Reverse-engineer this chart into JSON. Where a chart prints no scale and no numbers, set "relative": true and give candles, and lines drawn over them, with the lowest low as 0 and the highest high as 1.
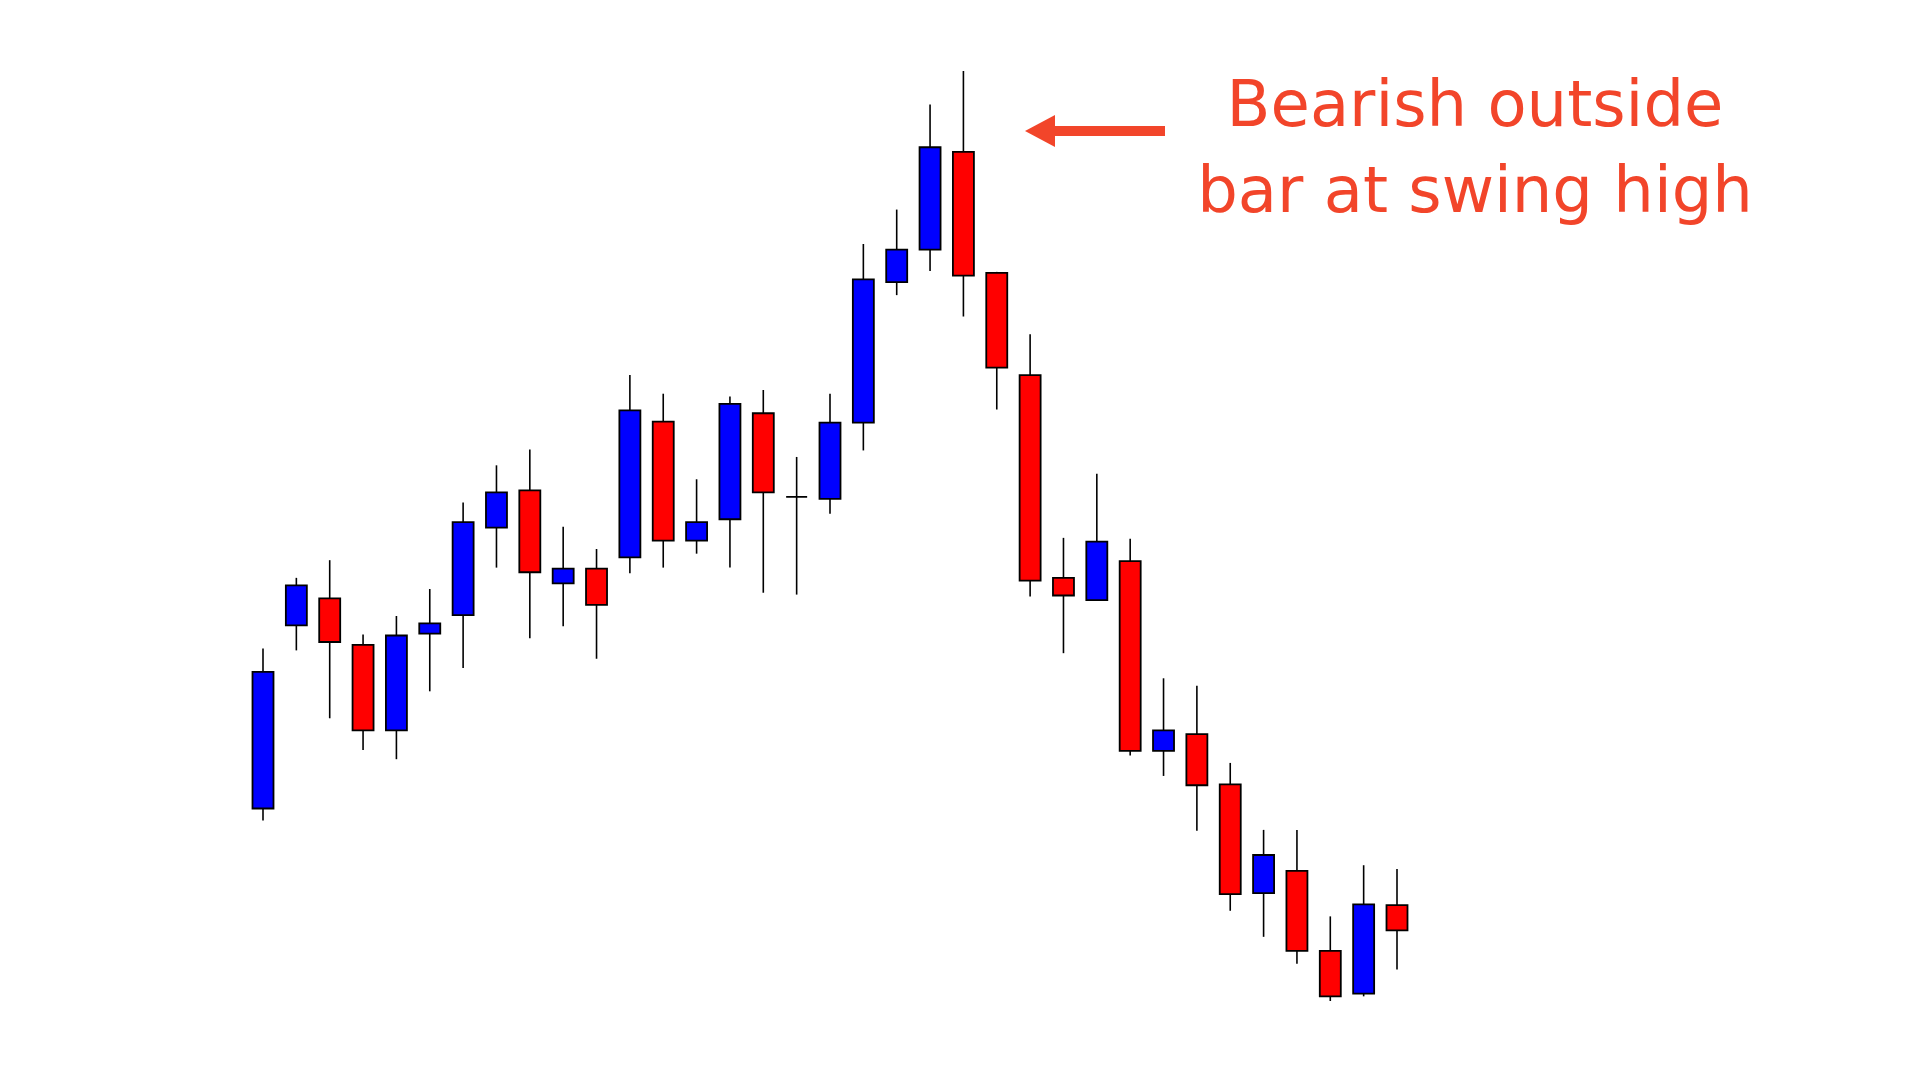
{
  "chart_data": {
    "type": "candlestick",
    "relative": true,
    "categories": [
      null,
      null,
      null,
      null,
      null,
      null,
      null,
      null,
      null,
      null,
      null,
      null,
      null,
      null,
      null,
      null,
      null,
      null,
      null,
      null,
      null,
      null,
      null,
      null,
      null,
      null,
      null,
      null,
      null,
      null,
      null,
      null,
      null,
      null,
      null
    ],
    "ohlc": [
      [
        0.207,
        0.379,
        0.194,
        0.354
      ],
      [
        0.404,
        0.455,
        0.377,
        0.447
      ],
      [
        0.433,
        0.474,
        0.304,
        0.386
      ],
      [
        0.383,
        0.394,
        0.27,
        0.291
      ],
      [
        0.291,
        0.414,
        0.26,
        0.393
      ],
      [
        0.395,
        0.443,
        0.333,
        0.406
      ],
      [
        0.415,
        0.536,
        0.358,
        0.515
      ],
      [
        0.509,
        0.576,
        0.466,
        0.547
      ],
      [
        0.549,
        0.593,
        0.39,
        0.461
      ],
      [
        0.449,
        0.51,
        0.403,
        0.465
      ],
      [
        0.465,
        0.486,
        0.368,
        0.426
      ],
      [
        0.477,
        0.673,
        0.46,
        0.635
      ],
      [
        0.623,
        0.653,
        0.466,
        0.495
      ],
      [
        0.495,
        0.561,
        0.481,
        0.515
      ],
      [
        0.518,
        0.65,
        0.466,
        0.642
      ],
      [
        0.632,
        0.657,
        0.439,
        0.547
      ],
      [
        0.542,
        0.585,
        0.437,
        0.542
      ],
      [
        0.54,
        0.653,
        0.524,
        0.622
      ],
      [
        0.622,
        0.814,
        0.592,
        0.776
      ],
      [
        0.773,
        0.851,
        0.759,
        0.808
      ],
      [
        0.808,
        0.964,
        0.785,
        0.918
      ],
      [
        0.913,
        1,
        0.736,
        0.78
      ],
      [
        0.783,
        0.784,
        0.636,
        0.681
      ],
      [
        0.673,
        0.717,
        0.435,
        0.452
      ],
      [
        0.455,
        0.498,
        0.374,
        0.436
      ],
      [
        0.431,
        0.567,
        0.431,
        0.494
      ],
      [
        0.473,
        0.497,
        0.264,
        0.269
      ],
      [
        0.269,
        0.347,
        0.242,
        0.291
      ],
      [
        0.287,
        0.339,
        0.183,
        0.232
      ],
      [
        0.233,
        0.256,
        0.097,
        0.115
      ],
      [
        0.116,
        0.184,
        0.069,
        0.157
      ],
      [
        0.14,
        0.184,
        0.04,
        0.054
      ],
      [
        0.054,
        0.091,
        0,
        0.005
      ],
      [
        0.008,
        0.146,
        0.005,
        0.104
      ],
      [
        0.103,
        0.142,
        0.034,
        0.076
      ]
    ],
    "colors": [
      "#0000ff",
      "#0000ff",
      "#ff0000",
      "#ff0000",
      "#0000ff",
      "#0000ff",
      "#0000ff",
      "#0000ff",
      "#ff0000",
      "#0000ff",
      "#ff0000",
      "#0000ff",
      "#ff0000",
      "#0000ff",
      "#0000ff",
      "#ff0000",
      "#000000",
      "#0000ff",
      "#0000ff",
      "#0000ff",
      "#0000ff",
      "#ff0000",
      "#ff0000",
      "#ff0000",
      "#ff0000",
      "#0000ff",
      "#ff0000",
      "#0000ff",
      "#ff0000",
      "#ff0000",
      "#0000ff",
      "#ff0000",
      "#ff0000",
      "#0000ff",
      "#ff0000"
    ],
    "annotations": [
      "Bearish outside\nbar at swing high"
    ]
  }
}
